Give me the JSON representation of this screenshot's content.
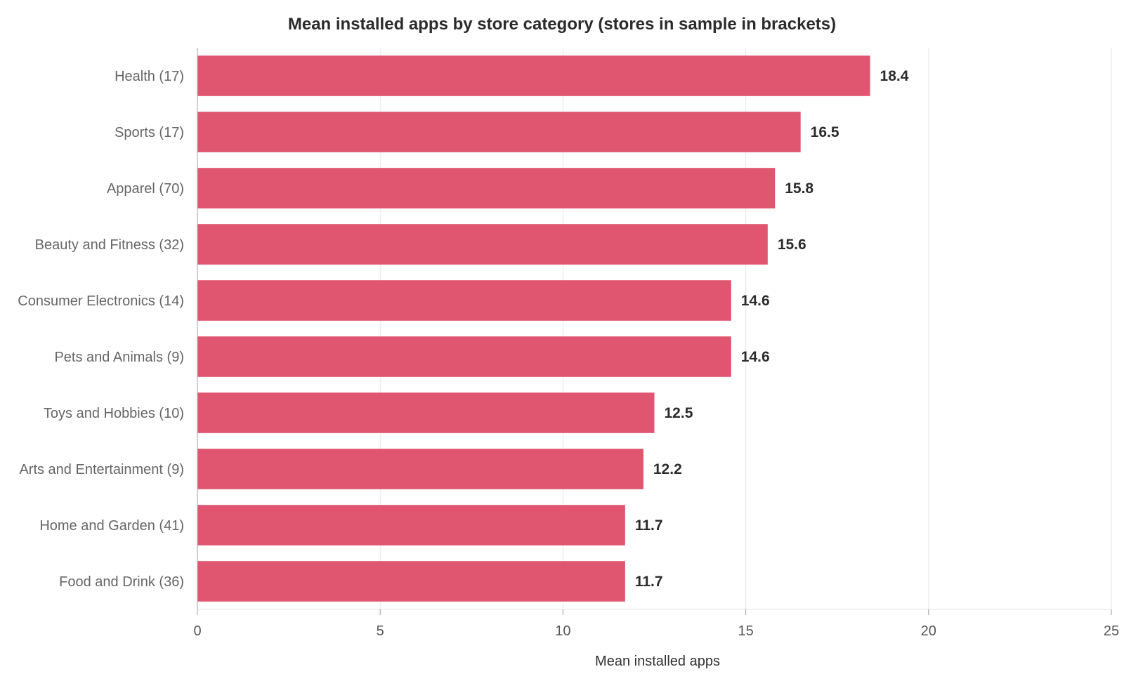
{
  "chart_data": {
    "type": "bar",
    "orientation": "horizontal",
    "title": "Mean installed apps by store category (stores in sample in brackets)",
    "xlabel": "Mean installed apps",
    "ylabel": "",
    "xlim": [
      0,
      25
    ],
    "xticks": [
      0,
      5,
      10,
      15,
      20,
      25
    ],
    "grid": true,
    "categories": [
      "Health (17)",
      "Sports (17)",
      "Apparel (70)",
      "Beauty and Fitness (32)",
      "Consumer Electronics (14)",
      "Pets and Animals (9)",
      "Toys and Hobbies (10)",
      "Arts and Entertainment (9)",
      "Home and Garden (41)",
      "Food and Drink (36)"
    ],
    "values": [
      18.4,
      16.5,
      15.8,
      15.6,
      14.6,
      14.6,
      12.5,
      12.2,
      11.7,
      11.7
    ],
    "value_labels": [
      "18.4",
      "16.5",
      "15.8",
      "15.6",
      "14.6",
      "14.6",
      "12.5",
      "12.2",
      "11.7",
      "11.7"
    ],
    "bar_color": "#e05570"
  }
}
